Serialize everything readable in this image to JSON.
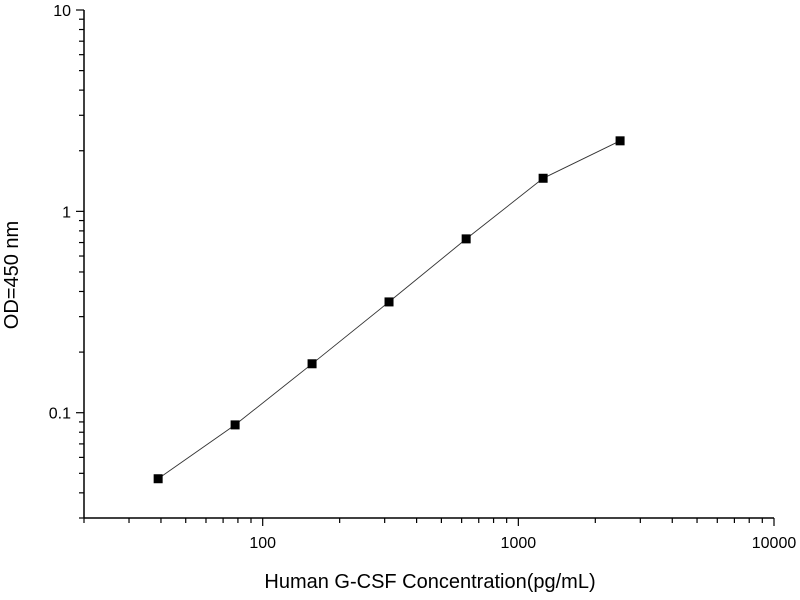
{
  "chart_data": {
    "type": "scatter",
    "xlabel": "Human G-CSF  Concentration(pg/mL)",
    "ylabel": "OD=450 nm",
    "xscale": "log",
    "yscale": "log",
    "xlim": [
      20,
      10000
    ],
    "ylim": [
      0.03,
      10
    ],
    "grid": false,
    "line": true,
    "marker": "square",
    "color": "#000000",
    "x_ticks": [
      100,
      1000,
      10000
    ],
    "x_tick_labels": [
      "100",
      "1000",
      "10000"
    ],
    "y_ticks": [
      0.1,
      1,
      10
    ],
    "y_tick_labels": [
      "0.1",
      "1",
      "10"
    ],
    "x": [
      39,
      78,
      156,
      312,
      625,
      1250,
      2500
    ],
    "y": [
      0.047,
      0.087,
      0.175,
      0.355,
      0.73,
      1.46,
      2.24
    ]
  }
}
